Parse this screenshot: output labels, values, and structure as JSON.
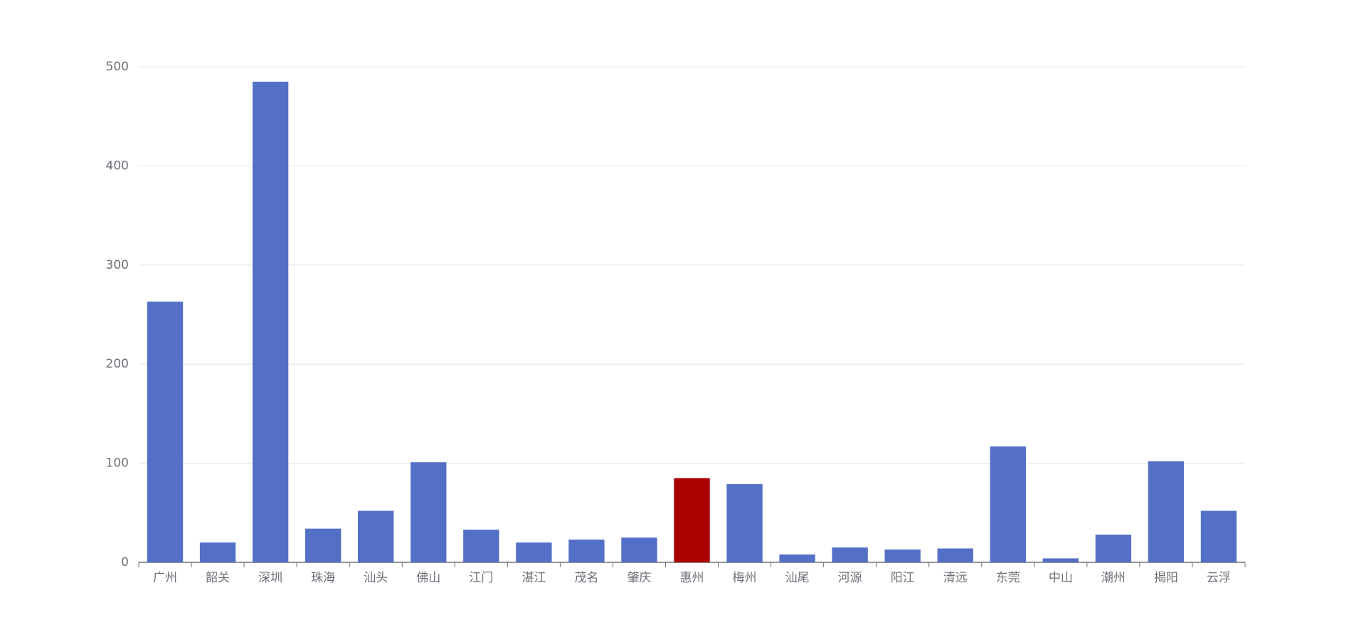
{
  "chart_data": {
    "type": "bar",
    "categories": [
      "广州",
      "韶关",
      "深圳",
      "珠海",
      "汕头",
      "佛山",
      "江门",
      "湛江",
      "茂名",
      "肇庆",
      "惠州",
      "梅州",
      "汕尾",
      "河源",
      "阳江",
      "清远",
      "东莞",
      "中山",
      "潮州",
      "揭阳",
      "云浮"
    ],
    "values": [
      263,
      20,
      485,
      34,
      52,
      101,
      33,
      20,
      23,
      25,
      85,
      79,
      8,
      15,
      13,
      14,
      117,
      4,
      28,
      102,
      52
    ],
    "colors": [
      "#5470c6",
      "#5470c6",
      "#5470c6",
      "#5470c6",
      "#5470c6",
      "#5470c6",
      "#5470c6",
      "#5470c6",
      "#5470c6",
      "#5470c6",
      "#aa0000",
      "#5470c6",
      "#5470c6",
      "#5470c6",
      "#5470c6",
      "#5470c6",
      "#5470c6",
      "#5470c6",
      "#5470c6",
      "#5470c6",
      "#5470c6"
    ],
    "ylim": [
      0,
      500
    ],
    "yticks": [
      0,
      100,
      200,
      300,
      400,
      500
    ],
    "grid": true
  }
}
